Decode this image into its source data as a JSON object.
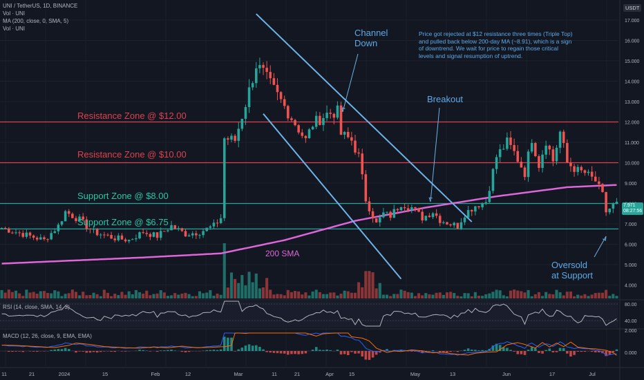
{
  "header": {
    "symbol": "UNI / TetherUS, 1D, BINANCE",
    "vol_label": "Vol · UNI",
    "ma_label": "MA (200, close, 0, SMA, 5)",
    "vol_label2": "Vol · UNI",
    "rsi_label": "RSI (14, close, SMA, 14, 2)",
    "macd_label": "MACD (12, 26, close, 9, EMA, EMA)"
  },
  "currency_badge": "USDT",
  "price_tag": {
    "value": "7.971",
    "countdown": "08:27:56"
  },
  "colors": {
    "bg": "#131722",
    "up": "#26a69a",
    "down": "#ef5350",
    "resistance": "#e0404d",
    "support": "#26a69a",
    "sma": "#dd66d9",
    "channel": "#6db3e6",
    "text_blue": "#5ea9e6"
  },
  "annotations": {
    "resistance_12": "Resistance Zone @ $12.00",
    "resistance_10": "Resistance Zone @ $10.00",
    "support_8": "Support Zone @ $8.00",
    "support_675": "Support Zone @ $6.75",
    "channel": "Channel\nDown",
    "breakout": "Breakout",
    "sma200": "200 SMA",
    "oversold": "Oversold\nat Support",
    "note": "Price got rejected at $12 resistance three times (Triple Top)\nand pulled back below 200-day MA (~8.91), which is a sign\nof downtrend. We wait for price to regain those critical\nlevels and signal resumption of uptrend."
  },
  "chart_data": {
    "type": "candlestick",
    "price_axis_ticks": [
      "17.000",
      "16.000",
      "15.000",
      "14.000",
      "13.000",
      "12.000",
      "11.000",
      "10.000",
      "9.000",
      "8.000",
      "7.000",
      "6.000",
      "5.000",
      "4.000"
    ],
    "time_axis_labels": [
      "11",
      "21",
      "2024",
      "15",
      "Feb",
      "12",
      "Mar",
      "11",
      "21",
      "Apr",
      "15",
      "May",
      "13",
      "Jun",
      "17",
      "Jul"
    ],
    "rsi_axis": [
      "80.00",
      "40.00"
    ],
    "macd_axis": [
      "2.000",
      "0.000"
    ],
    "horizontal_levels": [
      {
        "price": 12.0,
        "kind": "resistance"
      },
      {
        "price": 10.0,
        "kind": "resistance"
      },
      {
        "price": 8.0,
        "kind": "support"
      },
      {
        "price": 6.75,
        "kind": "support"
      }
    ],
    "current_price": 7.971,
    "close_path": [
      [
        0,
        6.8
      ],
      [
        6,
        6.5
      ],
      [
        12,
        6.2
      ],
      [
        16,
        6.9
      ],
      [
        18,
        7.6
      ],
      [
        22,
        7.2
      ],
      [
        26,
        6.6
      ],
      [
        32,
        6.3
      ],
      [
        36,
        6.2
      ],
      [
        40,
        6.6
      ],
      [
        44,
        6.4
      ],
      [
        48,
        6.9
      ],
      [
        52,
        6.5
      ],
      [
        56,
        6.6
      ],
      [
        60,
        6.9
      ],
      [
        62,
        7.3
      ],
      [
        63,
        11.2
      ],
      [
        66,
        11.1
      ],
      [
        69,
        12.9
      ],
      [
        72,
        14.8
      ],
      [
        74,
        14.4
      ],
      [
        78,
        13.3
      ],
      [
        82,
        12.2
      ],
      [
        86,
        11.1
      ],
      [
        88,
        11.9
      ],
      [
        92,
        12.4
      ],
      [
        95,
        12.5
      ],
      [
        96,
        11.4
      ],
      [
        99,
        11.1
      ],
      [
        101,
        10.3
      ],
      [
        103,
        8.2
      ],
      [
        106,
        7.0
      ],
      [
        108,
        7.5
      ],
      [
        110,
        7.4
      ],
      [
        113,
        8.0
      ],
      [
        116,
        7.8
      ],
      [
        119,
        7.3
      ],
      [
        122,
        7.6
      ],
      [
        124,
        7.2
      ],
      [
        127,
        7.0
      ],
      [
        129,
        6.9
      ],
      [
        131,
        7.5
      ],
      [
        134,
        7.9
      ],
      [
        137,
        8.1
      ],
      [
        140,
        10.3
      ],
      [
        143,
        11.0
      ],
      [
        145,
        10.5
      ],
      [
        148,
        9.5
      ],
      [
        150,
        11.2
      ],
      [
        152,
        9.9
      ],
      [
        154,
        11.1
      ],
      [
        156,
        10.1
      ],
      [
        158,
        11.5
      ],
      [
        160,
        10.0
      ],
      [
        163,
        9.6
      ],
      [
        165,
        9.5
      ],
      [
        168,
        9.1
      ],
      [
        170,
        8.4
      ],
      [
        171,
        7.6
      ],
      [
        173,
        7.9
      ],
      [
        174,
        7.97
      ]
    ],
    "candle_count": 175,
    "sma200": [
      [
        0,
        5.05
      ],
      [
        40,
        5.35
      ],
      [
        62,
        5.55
      ],
      [
        80,
        6.2
      ],
      [
        100,
        7.15
      ],
      [
        120,
        7.8
      ],
      [
        140,
        8.35
      ],
      [
        160,
        8.8
      ],
      [
        174,
        8.91
      ]
    ],
    "channel_lines": [
      {
        "from": [
          72,
          17.3
        ],
        "to": [
          133,
          7.1
        ]
      },
      {
        "from": [
          74,
          12.4
        ],
        "to": [
          113,
          4.3
        ]
      }
    ],
    "ylim": [
      3.5,
      17.5
    ]
  }
}
